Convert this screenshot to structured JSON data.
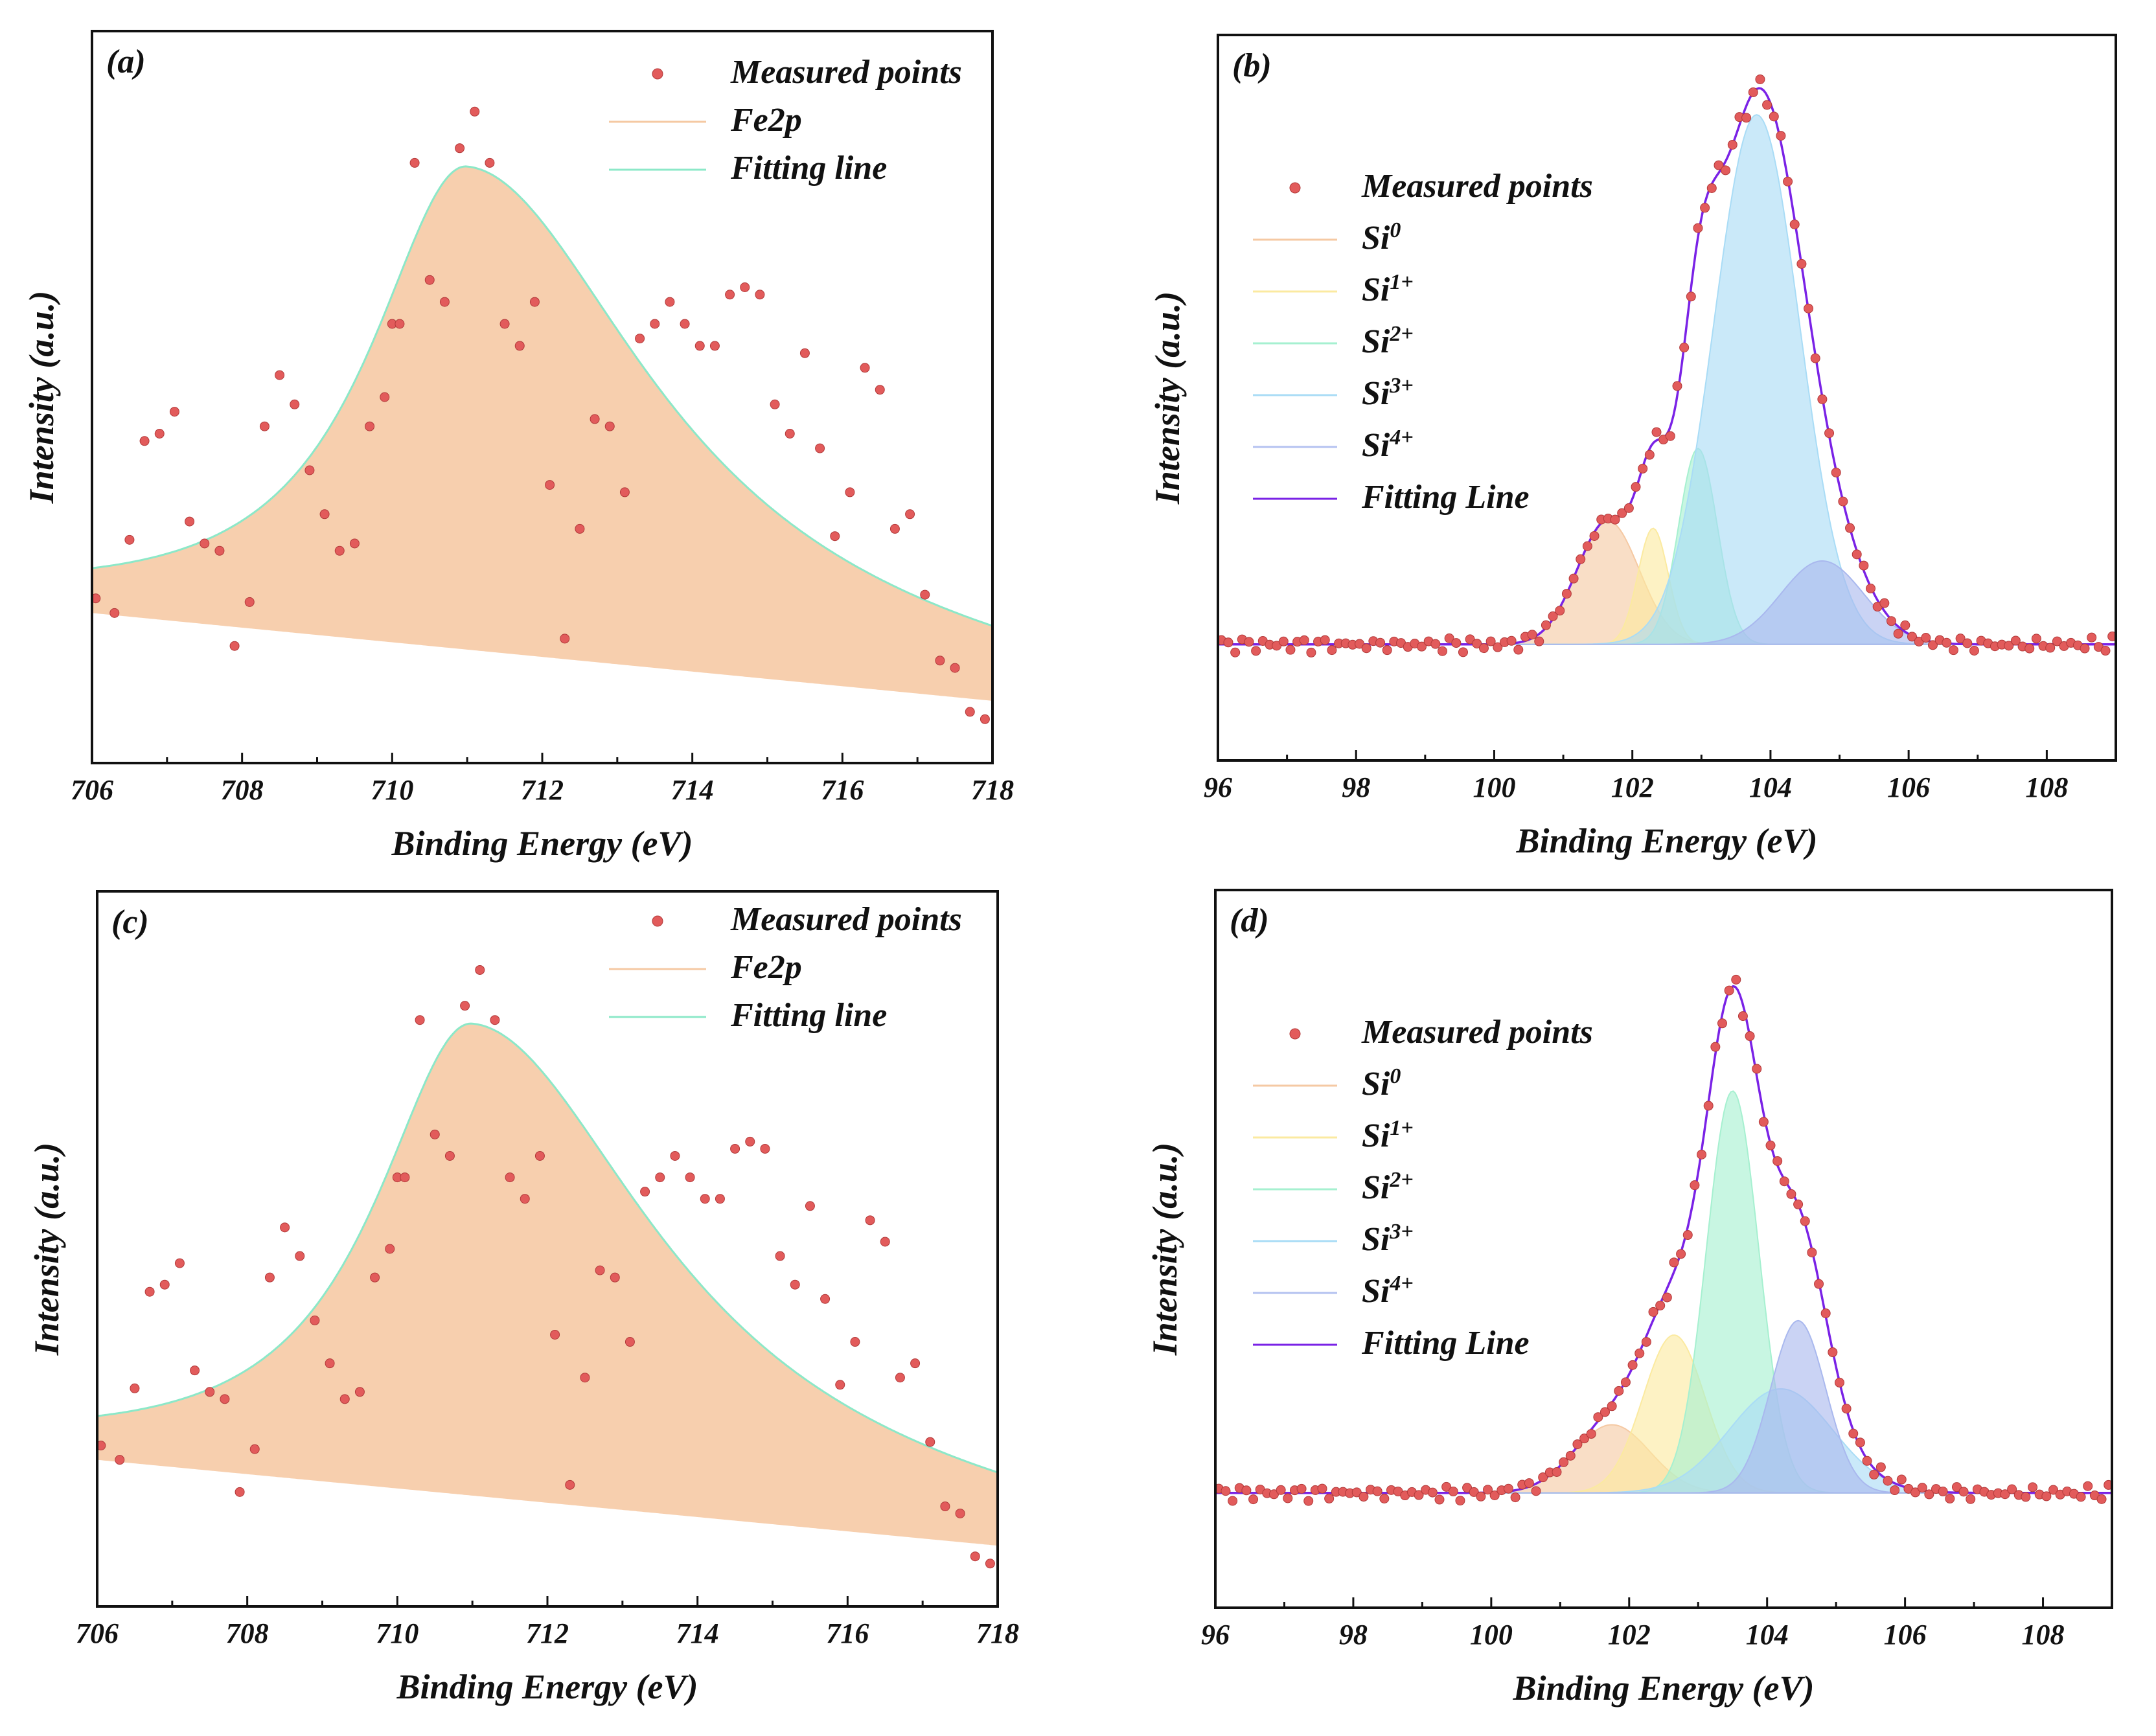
{
  "chart_data": [
    {
      "id": "a",
      "type": "area",
      "panel_label": "(a)",
      "xlabel": "Binding Energy (eV)",
      "ylabel": "Intensity (a.u.)",
      "xlim": [
        706,
        718
      ],
      "ylim": [
        0,
        1
      ],
      "xticks": [
        706,
        708,
        710,
        712,
        714,
        716,
        718
      ],
      "tick_labels": [
        "706",
        "708",
        "710",
        "712",
        "714",
        "716",
        "718"
      ],
      "legend": [
        {
          "label": "Measured points",
          "kind": "points",
          "color": "#e25b5b"
        },
        {
          "label": "Fe2p",
          "kind": "line",
          "color": "#f5c9a3"
        },
        {
          "label": "Fitting line",
          "kind": "line",
          "color": "#8ce8c8"
        }
      ],
      "baseline": {
        "x": [
          706,
          718
        ],
        "y": [
          0.205,
          0.085
        ]
      },
      "fit": {
        "center": 711.0,
        "height": 0.66,
        "width_left": 1.6,
        "width_right": 3.0
      },
      "measured": {
        "x": [
          706.05,
          706.3,
          706.5,
          706.7,
          706.9,
          707.1,
          707.3,
          707.5,
          707.7,
          707.9,
          708.1,
          708.3,
          708.5,
          708.7,
          708.9,
          709.1,
          709.3,
          709.5,
          709.7,
          709.9,
          710.0,
          710.1,
          710.3,
          710.5,
          710.7,
          710.9,
          711.1,
          711.3,
          711.5,
          711.7,
          711.9,
          712.1,
          712.3,
          712.5,
          712.7,
          712.9,
          713.1,
          713.3,
          713.5,
          713.7,
          713.9,
          714.1,
          714.3,
          714.5,
          714.7,
          714.9,
          715.1,
          715.3,
          715.5,
          715.7,
          715.9,
          716.1,
          716.3,
          716.5,
          716.7,
          716.9,
          717.1,
          717.3,
          717.5,
          717.7,
          717.9
        ],
        "y": [
          0.225,
          0.205,
          0.305,
          0.44,
          0.45,
          0.48,
          0.33,
          0.3,
          0.29,
          0.16,
          0.22,
          0.46,
          0.53,
          0.49,
          0.4,
          0.34,
          0.29,
          0.3,
          0.46,
          0.5,
          0.6,
          0.6,
          0.82,
          0.66,
          0.63,
          0.84,
          0.89,
          0.82,
          0.6,
          0.57,
          0.63,
          0.38,
          0.17,
          0.32,
          0.47,
          0.46,
          0.37,
          0.58,
          0.6,
          0.63,
          0.6,
          0.57,
          0.57,
          0.64,
          0.65,
          0.64,
          0.49,
          0.45,
          0.56,
          0.43,
          0.31,
          0.37,
          0.54,
          0.51,
          0.32,
          0.34,
          0.23,
          0.14,
          0.13,
          0.07,
          0.06
        ]
      }
    },
    {
      "id": "b",
      "type": "area",
      "panel_label": "(b)",
      "xlabel": "Binding Energy (eV)",
      "ylabel": "Intensity (a.u.)",
      "xlim": [
        96,
        109
      ],
      "ylim": [
        0,
        1
      ],
      "xticks": [
        96,
        98,
        100,
        102,
        104,
        106,
        108
      ],
      "tick_labels": [
        "96",
        "98",
        "100",
        "102",
        "104",
        "106",
        "108"
      ],
      "legend": [
        {
          "label": "Measured points",
          "sup": "",
          "kind": "points",
          "color": "#e25b5b"
        },
        {
          "label": "Si",
          "sup": "0",
          "kind": "line",
          "color": "#f5c9a3"
        },
        {
          "label": "Si",
          "sup": "1+",
          "kind": "line",
          "color": "#fbeaa0"
        },
        {
          "label": "Si",
          "sup": "2+",
          "kind": "line",
          "color": "#a6f0d0"
        },
        {
          "label": "Si",
          "sup": "3+",
          "kind": "line",
          "color": "#a9dcf6"
        },
        {
          "label": "Si",
          "sup": "4+",
          "kind": "line",
          "color": "#b4c2f0"
        },
        {
          "label": "Fitting Line",
          "sup": "",
          "kind": "line",
          "color": "#7a22e6"
        }
      ],
      "baseline": 0.16,
      "components": [
        {
          "name": "Si0",
          "center": 101.65,
          "height": 0.17,
          "sigma": 0.45,
          "color": "#f5c9a3"
        },
        {
          "name": "Si1+",
          "center": 102.3,
          "height": 0.16,
          "sigma": 0.22,
          "color": "#fbeaa0"
        },
        {
          "name": "Si2+",
          "center": 102.95,
          "height": 0.27,
          "sigma": 0.28,
          "color": "#a6f0d0"
        },
        {
          "name": "Si3+",
          "center": 103.8,
          "height": 0.73,
          "sigma": 0.62,
          "color": "#a9dcf6"
        },
        {
          "name": "Si4+",
          "center": 104.75,
          "height": 0.115,
          "sigma": 0.6,
          "color": "#a9b8ee"
        }
      ],
      "measured_note": "points follow the fitted envelope"
    },
    {
      "id": "c",
      "type": "area",
      "panel_label": "(c)",
      "xlabel": "Binding Energy (eV)",
      "ylabel": "Intensity (a.u.)",
      "xlim": [
        706,
        718
      ],
      "ylim": [
        0,
        1
      ],
      "xticks": [
        706,
        708,
        710,
        712,
        714,
        716,
        718
      ],
      "tick_labels": [
        "706",
        "708",
        "710",
        "712",
        "714",
        "716",
        "718"
      ],
      "legend": [
        {
          "label": "Measured points",
          "kind": "points",
          "color": "#e25b5b"
        },
        {
          "label": "Fe2p",
          "kind": "line",
          "color": "#f5c9a3"
        },
        {
          "label": "Fitting line",
          "kind": "line",
          "color": "#8ce8c8"
        }
      ],
      "baseline": {
        "x": [
          706,
          718
        ],
        "y": [
          0.205,
          0.085
        ]
      },
      "fit": {
        "center": 711.0,
        "height": 0.66,
        "width_left": 1.6,
        "width_right": 3.0
      },
      "measured": {
        "x": [
          706.05,
          706.3,
          706.5,
          706.7,
          706.9,
          707.1,
          707.3,
          707.5,
          707.7,
          707.9,
          708.1,
          708.3,
          708.5,
          708.7,
          708.9,
          709.1,
          709.3,
          709.5,
          709.7,
          709.9,
          710.0,
          710.1,
          710.3,
          710.5,
          710.7,
          710.9,
          711.1,
          711.3,
          711.5,
          711.7,
          711.9,
          712.1,
          712.3,
          712.5,
          712.7,
          712.9,
          713.1,
          713.3,
          713.5,
          713.7,
          713.9,
          714.1,
          714.3,
          714.5,
          714.7,
          714.9,
          715.1,
          715.3,
          715.5,
          715.7,
          715.9,
          716.1,
          716.3,
          716.5,
          716.7,
          716.9,
          717.1,
          717.3,
          717.5,
          717.7,
          717.9
        ],
        "y": [
          0.225,
          0.205,
          0.305,
          0.44,
          0.45,
          0.48,
          0.33,
          0.3,
          0.29,
          0.16,
          0.22,
          0.46,
          0.53,
          0.49,
          0.4,
          0.34,
          0.29,
          0.3,
          0.46,
          0.5,
          0.6,
          0.6,
          0.82,
          0.66,
          0.63,
          0.84,
          0.89,
          0.82,
          0.6,
          0.57,
          0.63,
          0.38,
          0.17,
          0.32,
          0.47,
          0.46,
          0.37,
          0.58,
          0.6,
          0.63,
          0.6,
          0.57,
          0.57,
          0.64,
          0.65,
          0.64,
          0.49,
          0.45,
          0.56,
          0.43,
          0.31,
          0.37,
          0.54,
          0.51,
          0.32,
          0.34,
          0.23,
          0.14,
          0.13,
          0.07,
          0.06
        ]
      }
    },
    {
      "id": "d",
      "type": "area",
      "panel_label": "(d)",
      "xlabel": "Binding Energy (eV)",
      "ylabel": "Intensity (a.u.)",
      "xlim": [
        96,
        109
      ],
      "ylim": [
        0,
        1
      ],
      "xticks": [
        96,
        98,
        100,
        102,
        104,
        106,
        108
      ],
      "tick_labels": [
        "96",
        "98",
        "100",
        "102",
        "104",
        "106",
        "108"
      ],
      "legend": [
        {
          "label": "Measured points",
          "sup": "",
          "kind": "points",
          "color": "#e25b5b"
        },
        {
          "label": "Si",
          "sup": "0",
          "kind": "line",
          "color": "#f5c9a3"
        },
        {
          "label": "Si",
          "sup": "1+",
          "kind": "line",
          "color": "#fbeaa0"
        },
        {
          "label": "Si",
          "sup": "2+",
          "kind": "line",
          "color": "#a6f0d0"
        },
        {
          "label": "Si",
          "sup": "3+",
          "kind": "line",
          "color": "#a9dcf6"
        },
        {
          "label": "Si",
          "sup": "4+",
          "kind": "line",
          "color": "#b4c2f0"
        },
        {
          "label": "Fitting Line",
          "sup": "",
          "kind": "line",
          "color": "#7a22e6"
        }
      ],
      "baseline": 0.16,
      "components": [
        {
          "name": "Si0",
          "center": 101.75,
          "height": 0.095,
          "sigma": 0.55,
          "color": "#f5c9a3"
        },
        {
          "name": "Si1+",
          "center": 102.65,
          "height": 0.22,
          "sigma": 0.45,
          "color": "#fbeaa0"
        },
        {
          "name": "Si2+",
          "center": 103.5,
          "height": 0.56,
          "sigma": 0.38,
          "color": "#a6f0d0"
        },
        {
          "name": "Si3+",
          "center": 104.2,
          "height": 0.145,
          "sigma": 0.75,
          "color": "#a9dcf6"
        },
        {
          "name": "Si4+",
          "center": 104.45,
          "height": 0.24,
          "sigma": 0.4,
          "color": "#a9b8ee"
        }
      ],
      "measured_note": "points follow the fitted envelope"
    }
  ]
}
